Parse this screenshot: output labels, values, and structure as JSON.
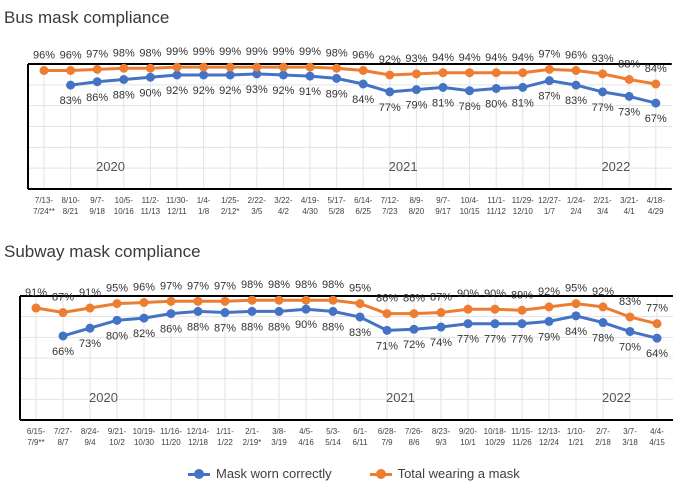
{
  "legend": {
    "correct_label": "Mask worn correctly",
    "total_label": "Total wearing a mask"
  },
  "colors": {
    "correct": "#4472c4",
    "total": "#ed7d31",
    "grid": "#e3e3e3",
    "axis": "#000000",
    "text": "#404040"
  },
  "chart_data": [
    {
      "type": "line",
      "title": "Bus mask compliance",
      "grid": true,
      "ylim": [
        0,
        100
      ],
      "x": [
        "7/13-\n7/24**",
        "8/10-\n8/21",
        "9/7-\n9/18",
        "10/5-\n10/16",
        "11/2-\n11/13",
        "11/30-\n12/11",
        "1/4-\n1/8",
        "1/25-\n2/12*",
        "2/22-\n3/5",
        "3/22-\n4/2",
        "4/19-\n4/30",
        "5/17-\n5/28",
        "6/14-\n6/25",
        "7/12-\n7/23",
        "8/9-\n8/20",
        "9/7-\n9/17",
        "10/4-\n10/15",
        "11/1-\n11/12",
        "11/29-\n12/10",
        "12/27-\n1/7",
        "1/24-\n2/4",
        "2/21-\n3/4",
        "3/21-\n4/1",
        "4/18-\n4/29"
      ],
      "year_labels": [
        {
          "label": "2020",
          "at": 2.5
        },
        {
          "label": "2021",
          "at": 13.5
        },
        {
          "label": "2022",
          "at": 21.5
        }
      ],
      "series": [
        {
          "name": "Mask worn correctly",
          "key": "correct",
          "values": [
            null,
            83,
            86,
            88,
            90,
            92,
            92,
            92,
            93,
            92,
            91,
            89,
            84,
            77,
            79,
            81,
            78,
            80,
            81,
            87,
            83,
            77,
            73,
            67
          ]
        },
        {
          "name": "Total wearing a mask",
          "key": "total",
          "values": [
            96,
            96,
            97,
            98,
            98,
            99,
            99,
            99,
            99,
            99,
            99,
            98,
            96,
            92,
            93,
            94,
            94,
            94,
            94,
            97,
            96,
            93,
            88,
            84
          ]
        }
      ]
    },
    {
      "type": "line",
      "title": "Subway mask compliance",
      "grid": true,
      "ylim": [
        0,
        100
      ],
      "x": [
        "6/15-\n7/9**",
        "7/27-\n8/7",
        "8/24-\n9/4",
        "9/21-\n10/2",
        "10/19-\n10/30",
        "11/16-\n11/20",
        "12/14-\n12/18",
        "1/11-\n1/22",
        "2/1-\n2/19*",
        "3/8-\n3/19",
        "4/5-\n4/16",
        "5/3-\n5/14",
        "6/1-\n6/11",
        "6/28-\n7/9",
        "7/26-\n8/6",
        "8/23-\n9/3",
        "9/20-\n10/1",
        "10/18-\n10/29",
        "11/15-\n11/26",
        "12/13-\n12/24",
        "1/10-\n1/21",
        "2/7-\n2/18",
        "3/7-\n3/18",
        "4/4-\n4/15"
      ],
      "year_labels": [
        {
          "label": "2020",
          "at": 2.5
        },
        {
          "label": "2021",
          "at": 13.5
        },
        {
          "label": "2022",
          "at": 21.5
        }
      ],
      "series": [
        {
          "name": "Mask worn correctly",
          "key": "correct",
          "values": [
            null,
            66,
            73,
            80,
            82,
            86,
            88,
            87,
            88,
            88,
            90,
            88,
            83,
            71,
            72,
            74,
            77,
            77,
            77,
            79,
            84,
            78,
            70,
            64
          ]
        },
        {
          "name": "Total wearing a mask",
          "key": "total",
          "values": [
            91,
            87,
            91,
            95,
            96,
            97,
            97,
            97,
            98,
            98,
            98,
            98,
            95,
            86,
            86,
            87,
            90,
            90,
            89,
            92,
            95,
            92,
            83,
            77
          ]
        }
      ]
    }
  ]
}
